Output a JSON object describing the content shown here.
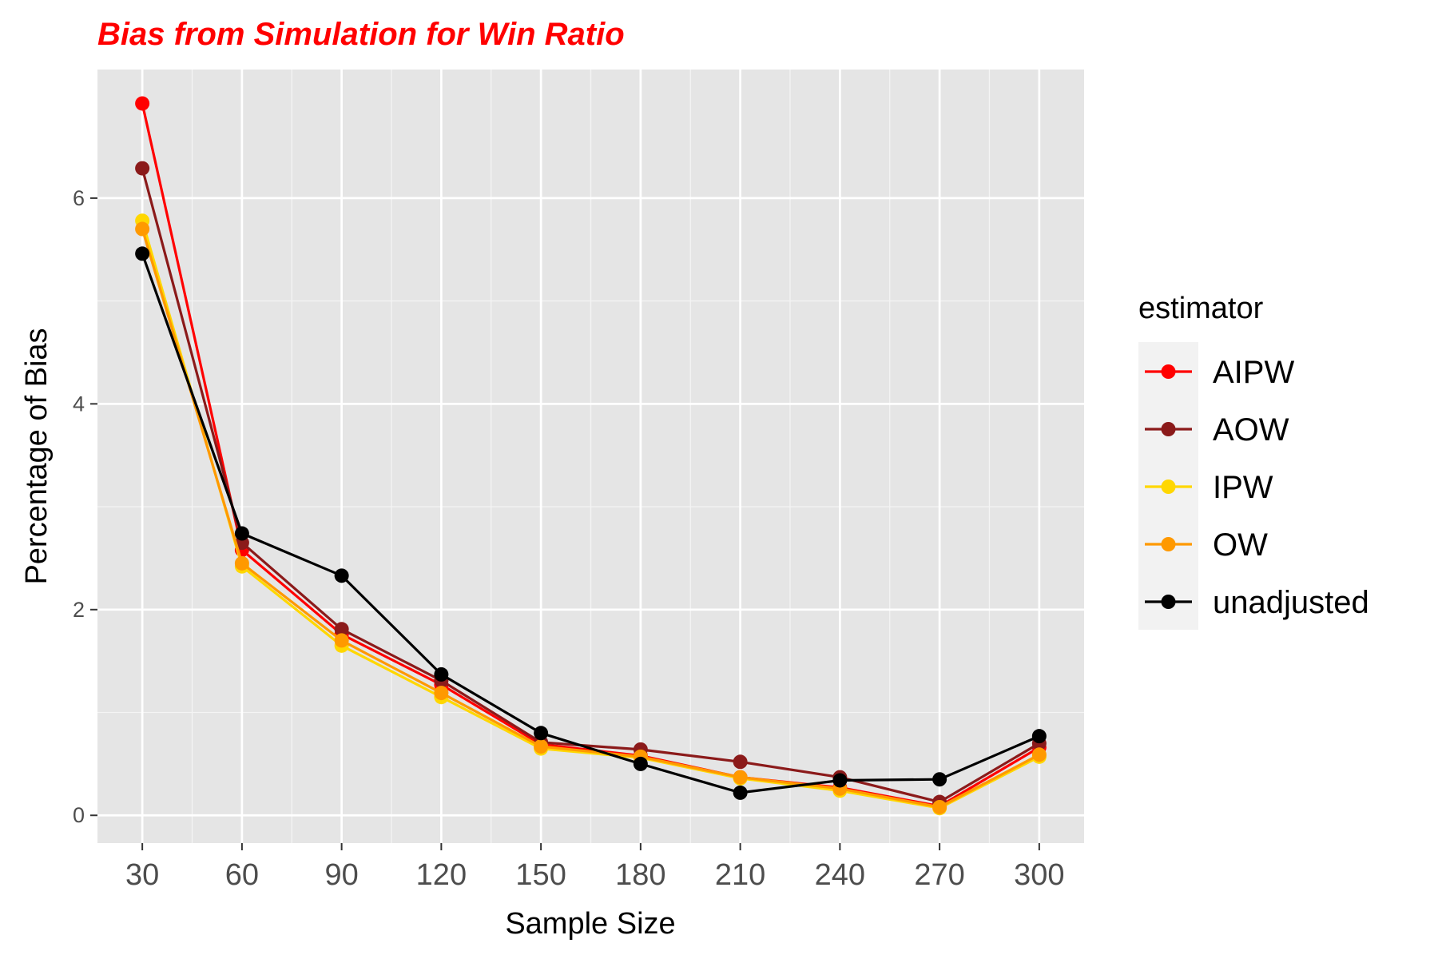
{
  "chart_data": {
    "type": "line",
    "title": "Bias from Simulation for Win Ratio",
    "title_color": "#ff0000",
    "xlabel": "Sample Size",
    "ylabel": "Percentage of Bias",
    "x": [
      30,
      60,
      90,
      120,
      150,
      180,
      210,
      240,
      270,
      300
    ],
    "x_ticks": [
      "30",
      "60",
      "90",
      "120",
      "150",
      "180",
      "210",
      "240",
      "270",
      "300"
    ],
    "y_ticks": [
      0,
      2,
      4,
      6
    ],
    "y_tick_labels": [
      "0",
      "2",
      "4",
      "6"
    ],
    "xlim": [
      16.5,
      313.5
    ],
    "ylim": [
      -0.27,
      7.25
    ],
    "grid": true,
    "legend_title": "estimator",
    "legend_position": "right",
    "series": [
      {
        "name": "AIPW",
        "color": "#ff0000",
        "values": [
          6.92,
          2.58,
          1.76,
          1.27,
          0.69,
          0.58,
          0.37,
          0.27,
          0.09,
          0.66
        ]
      },
      {
        "name": "AOW",
        "color": "#8b1a1a",
        "values": [
          6.29,
          2.65,
          1.81,
          1.31,
          0.71,
          0.64,
          0.52,
          0.37,
          0.13,
          0.7
        ]
      },
      {
        "name": "IPW",
        "color": "#ffd700",
        "values": [
          5.78,
          2.42,
          1.65,
          1.15,
          0.65,
          0.56,
          0.36,
          0.24,
          0.07,
          0.57
        ]
      },
      {
        "name": "OW",
        "color": "#ff9900",
        "values": [
          5.7,
          2.45,
          1.7,
          1.19,
          0.67,
          0.57,
          0.37,
          0.26,
          0.08,
          0.59
        ]
      },
      {
        "name": "unadjusted",
        "color": "#000000",
        "values": [
          5.46,
          2.74,
          2.33,
          1.37,
          0.8,
          0.5,
          0.22,
          0.34,
          0.35,
          0.77
        ]
      }
    ]
  }
}
